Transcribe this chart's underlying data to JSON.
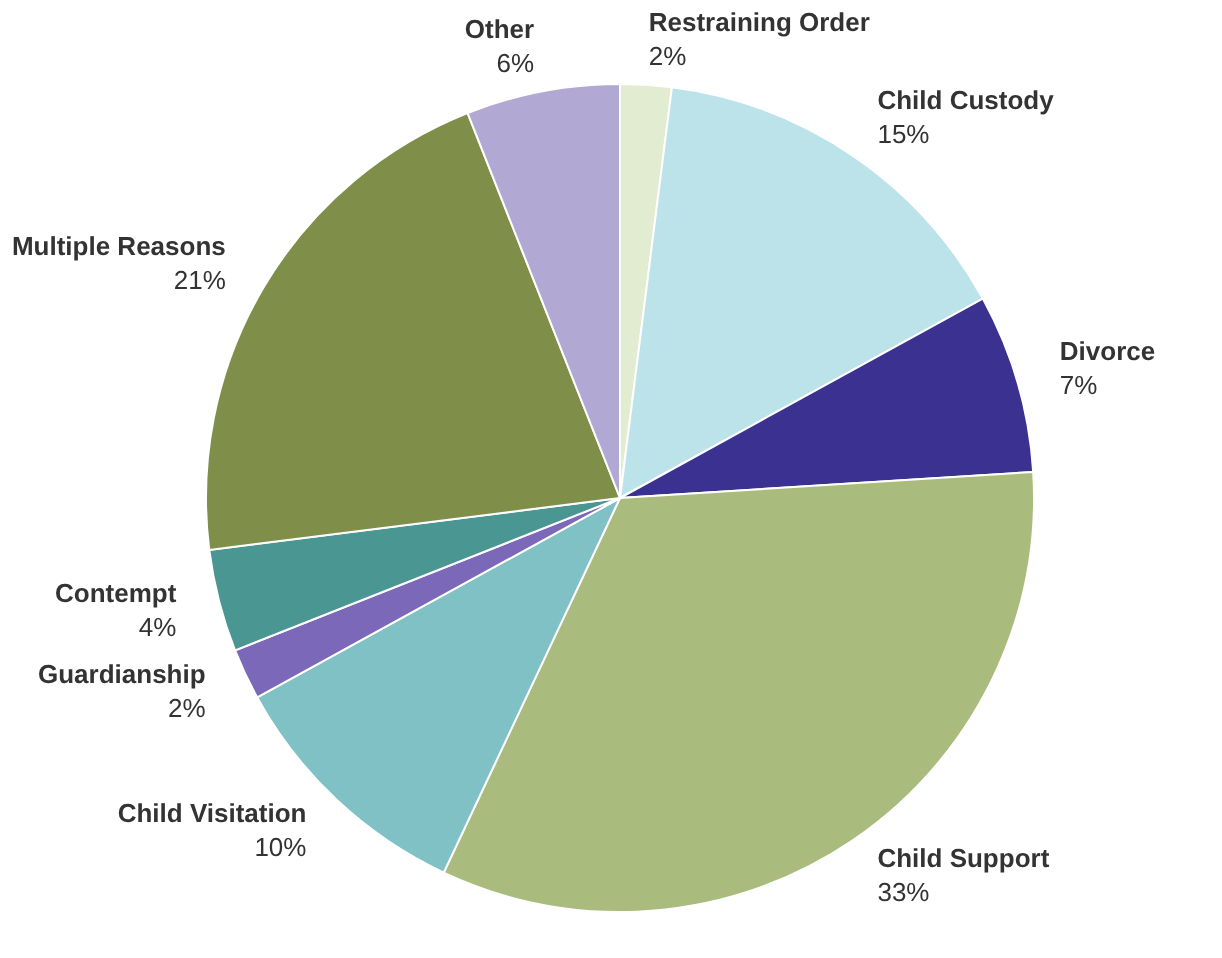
{
  "chart_data": {
    "type": "pie",
    "categories": [
      "Restraining Order",
      "Child Custody",
      "Divorce",
      "Child Support",
      "Child Visitation",
      "Guardianship",
      "Contempt",
      "Multiple Reasons",
      "Other"
    ],
    "values": [
      2,
      15,
      7,
      33,
      10,
      2,
      4,
      21,
      6
    ],
    "colors": [
      "#e2ecd0",
      "#bde3ea",
      "#3b3191",
      "#a9bb7d",
      "#80c1c6",
      "#7b68b8",
      "#4a9693",
      "#7f8f4a",
      "#b1a9d3"
    ],
    "value_labels": [
      "2%",
      "15%",
      "7%",
      "33%",
      "10%",
      "2%",
      "4%",
      "21%",
      "6%"
    ],
    "legend": false
  }
}
